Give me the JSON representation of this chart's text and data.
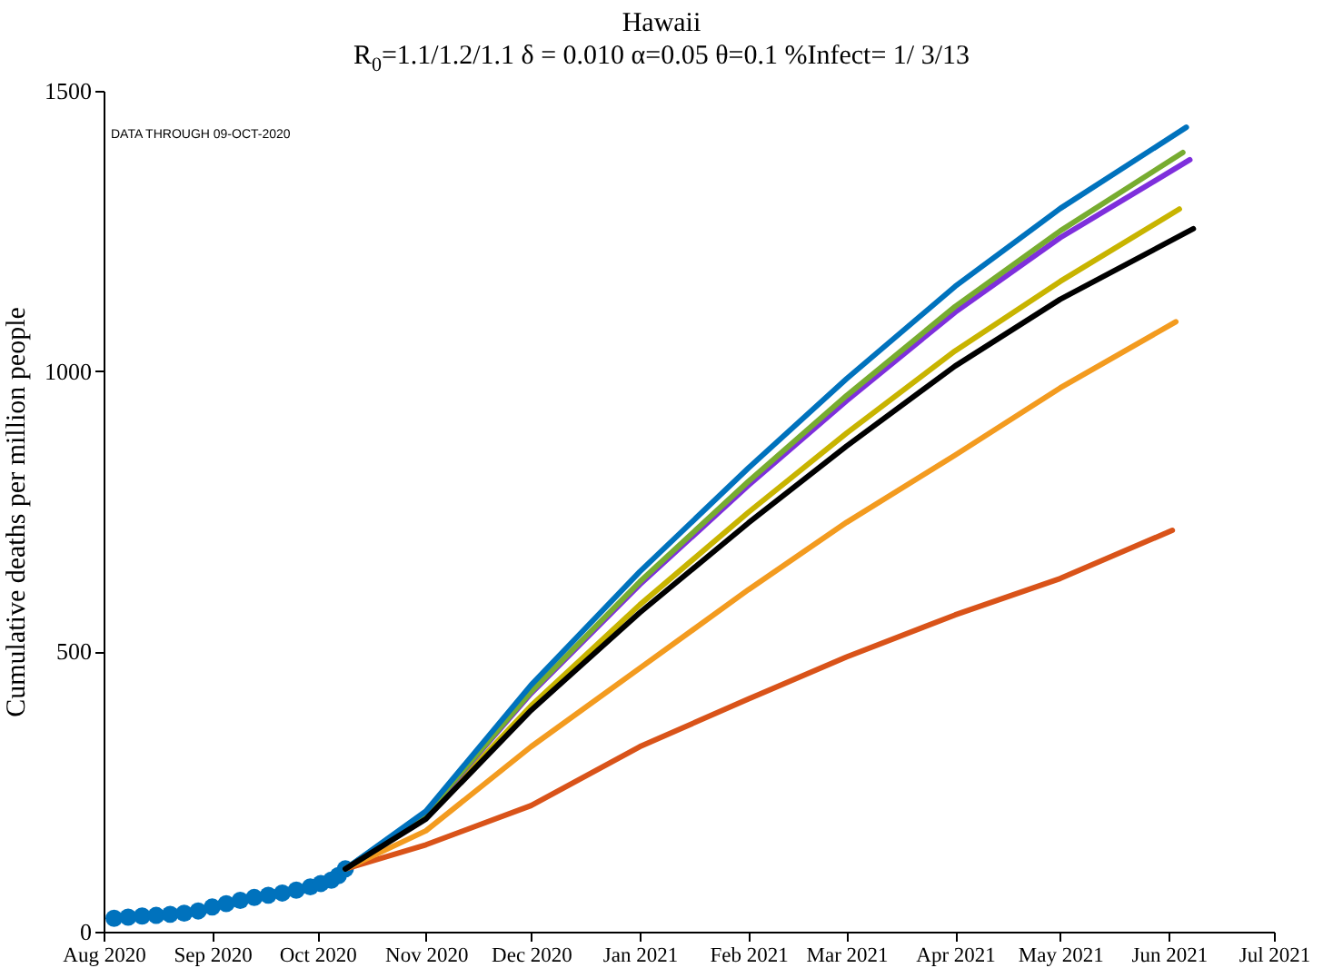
{
  "chart_data": {
    "type": "line",
    "title": "Hawaii",
    "subtitle": "R$_{0}$=1.1/1.2/1.1  δ = 0.010  α=0.05  θ=0.1  %Infect= 1/ 3/13",
    "ylabel": "Cumulative deaths per million people",
    "annotations": [
      "DATA THROUGH 09-OCT-2020"
    ],
    "xlim": [
      "2020-08-01",
      "2021-07-01"
    ],
    "xticks": [
      {
        "value": "2020-08-01",
        "label": "Aug 2020"
      },
      {
        "value": "2020-09-01",
        "label": "Sep 2020"
      },
      {
        "value": "2020-10-01",
        "label": "Oct 2020"
      },
      {
        "value": "2020-11-01",
        "label": "Nov 2020"
      },
      {
        "value": "2020-12-01",
        "label": "Dec 2020"
      },
      {
        "value": "2021-01-01",
        "label": "Jan 2021"
      },
      {
        "value": "2021-02-01",
        "label": "Feb 2021"
      },
      {
        "value": "2021-03-01",
        "label": "Mar 2021"
      },
      {
        "value": "2021-04-01",
        "label": "Apr 2021"
      },
      {
        "value": "2021-05-01",
        "label": "May 2021"
      },
      {
        "value": "2021-06-01",
        "label": "Jun 2021"
      },
      {
        "value": "2021-07-01",
        "label": "Jul 2021"
      }
    ],
    "ylim": [
      0,
      1500
    ],
    "yticks": [
      0,
      500,
      1000,
      1500
    ],
    "grid": false,
    "line_style": "solid",
    "series": [
      {
        "type": "scatter",
        "marker": "circle",
        "color": "#0072bd",
        "x": [
          "2020-08-04",
          "2020-08-08",
          "2020-08-12",
          "2020-08-16",
          "2020-08-20",
          "2020-08-24",
          "2020-08-28",
          "2020-09-01",
          "2020-09-05",
          "2020-09-09",
          "2020-09-13",
          "2020-09-17",
          "2020-09-21",
          "2020-09-25",
          "2020-09-29",
          "2020-10-02",
          "2020-10-05",
          "2020-10-07",
          "2020-10-09"
        ],
        "values": [
          24,
          26,
          28,
          29,
          31,
          33,
          37,
          44,
          50,
          56,
          61,
          65,
          69,
          74,
          80,
          86,
          92,
          100,
          112
        ]
      },
      {
        "color": "#d95319",
        "x": [
          "2020-10-09",
          "2020-11-01",
          "2020-12-01",
          "2021-01-01",
          "2021-02-01",
          "2021-03-01",
          "2021-04-01",
          "2021-05-01",
          "2021-06-02"
        ],
        "values": [
          112,
          155,
          225,
          330,
          415,
          490,
          565,
          630,
          716
        ]
      },
      {
        "color": "#f39b1f",
        "x": [
          "2020-10-09",
          "2020-11-01",
          "2020-12-01",
          "2021-01-01",
          "2021-02-01",
          "2021-03-01",
          "2021-04-01",
          "2021-05-01",
          "2021-06-03"
        ],
        "values": [
          112,
          180,
          330,
          470,
          610,
          730,
          850,
          970,
          1088
        ]
      },
      {
        "color": "#c8b400",
        "x": [
          "2020-10-09",
          "2020-11-01",
          "2020-12-01",
          "2021-01-01",
          "2021-02-01",
          "2021-03-01",
          "2021-04-01",
          "2021-05-01",
          "2021-06-04"
        ],
        "values": [
          112,
          204,
          403,
          583,
          748,
          889,
          1036,
          1160,
          1289
        ]
      },
      {
        "color": "#7e2fdc",
        "x": [
          "2020-10-09",
          "2020-11-01",
          "2020-12-01",
          "2021-01-01",
          "2021-02-01",
          "2021-03-01",
          "2021-04-01",
          "2021-05-01",
          "2021-06-07"
        ],
        "values": [
          112,
          210,
          425,
          619,
          796,
          947,
          1105,
          1238,
          1377
        ]
      },
      {
        "color": "#77ac30",
        "x": [
          "2020-10-09",
          "2020-11-01",
          "2020-12-01",
          "2021-01-01",
          "2021-02-01",
          "2021-03-01",
          "2021-04-01",
          "2021-05-01",
          "2021-06-05"
        ],
        "values": [
          112,
          211,
          428,
          624,
          803,
          956,
          1115,
          1250,
          1390
        ]
      },
      {
        "color": "#0072bd",
        "x": [
          "2020-10-09",
          "2020-11-01",
          "2020-12-01",
          "2021-01-01",
          "2021-02-01",
          "2021-03-01",
          "2021-04-01",
          "2021-05-01",
          "2021-06-06"
        ],
        "values": [
          112,
          215,
          440,
          642,
          827,
          986,
          1151,
          1290,
          1435
        ]
      },
      {
        "color": "#000000",
        "x": [
          "2020-10-09",
          "2020-11-01",
          "2020-12-01",
          "2021-01-01",
          "2021-02-01",
          "2021-03-01",
          "2021-04-01",
          "2021-05-01",
          "2021-06-08"
        ],
        "values": [
          112,
          201,
          395,
          569,
          729,
          866,
          1009,
          1128,
          1254
        ]
      }
    ]
  }
}
